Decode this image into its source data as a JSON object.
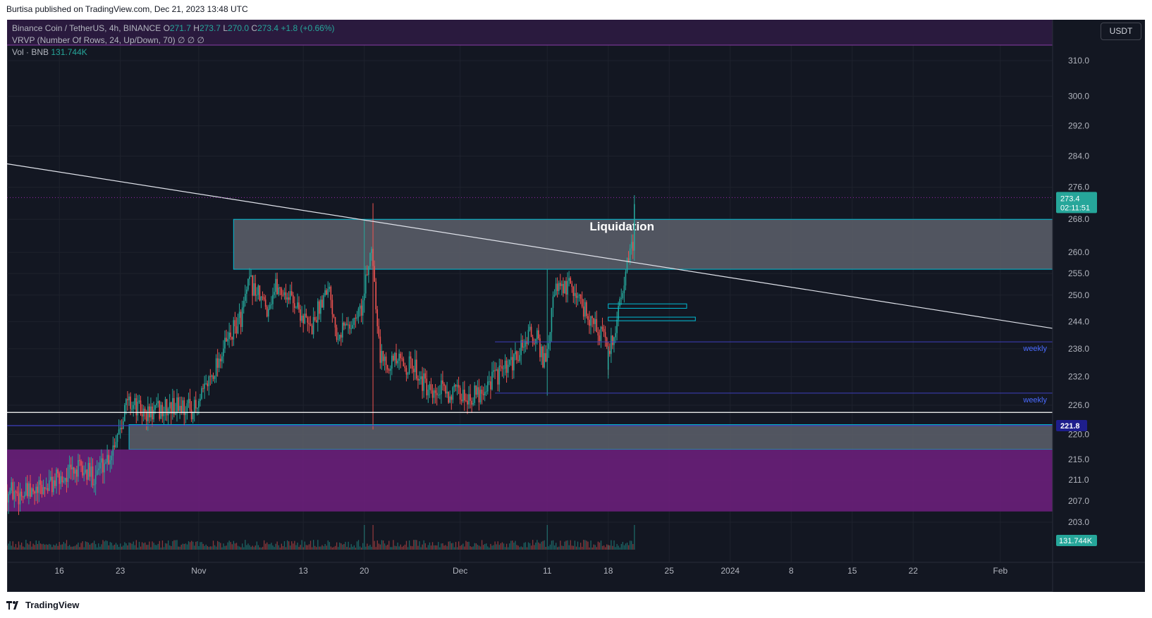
{
  "publisher_line": "Burtisa published on TradingView.com, Dec 21, 2023 13:48 UTC",
  "footer_brand": "TradingView",
  "currency_button": "USDT",
  "legend": {
    "symbol": "Binance Coin / TetherUS, 4h, BINANCE",
    "o_label": "O",
    "o_value": "271.7",
    "h_label": "H",
    "h_value": "273.7",
    "l_label": "L",
    "l_value": "270.0",
    "c_label": "C",
    "c_value": "273.4",
    "change": "+1.8 (+0.66%)",
    "vrvp": "VRVP (Number Of Rows, 24, Up/Down, 70)  ∅  ∅  ∅",
    "vol_label": "Vol · BNB",
    "vol_value": "131.744K"
  },
  "colors": {
    "background": "#131722",
    "up": "#26a69a",
    "down": "#ef5350",
    "zone_fill": "#5d606b",
    "zone_border": "#00bcd4",
    "purple_zone": "#6a1f7a",
    "weekly_line": "#3f3fbf"
  },
  "chart_data": {
    "type": "candlestick",
    "symbol": "BNBUSDT",
    "timeframe": "4h",
    "price_axis": {
      "scale": "log",
      "ticks": [
        "310.0",
        "300.0",
        "292.0",
        "284.0",
        "276.0",
        "268.0",
        "260.0",
        "255.0",
        "250.0",
        "244.0",
        "238.0",
        "232.0",
        "226.0",
        "220.0",
        "215.0",
        "211.0",
        "207.0",
        "203.0"
      ],
      "range": [
        200,
        320
      ]
    },
    "time_axis": {
      "ticks": [
        "16",
        "23",
        "Nov",
        "13",
        "20",
        "Dec",
        "11",
        "18",
        "25",
        "2024",
        "8",
        "15",
        "22",
        "Feb"
      ],
      "start": "2023-10-10",
      "end": "2024-02-07"
    },
    "price_badges": [
      {
        "label": "273.4",
        "sub": "02:11:51"
      },
      {
        "label": "221.8"
      },
      {
        "label": "131.744K"
      }
    ],
    "ohlc_anchor_path": [
      [
        "2023-10-10",
        209
      ],
      [
        "2023-10-13",
        208
      ],
      [
        "2023-10-16",
        211
      ],
      [
        "2023-10-18",
        213
      ],
      [
        "2023-10-20",
        212
      ],
      [
        "2023-10-22",
        216
      ],
      [
        "2023-10-24",
        227
      ],
      [
        "2023-10-26",
        224
      ],
      [
        "2023-10-28",
        225
      ],
      [
        "2023-10-30",
        226
      ],
      [
        "2023-11-01",
        225
      ],
      [
        "2023-11-02",
        230
      ],
      [
        "2023-11-04",
        238
      ],
      [
        "2023-11-06",
        245
      ],
      [
        "2023-11-07",
        253
      ],
      [
        "2023-11-09",
        247
      ],
      [
        "2023-11-10",
        252
      ],
      [
        "2023-11-12",
        249
      ],
      [
        "2023-11-14",
        242
      ],
      [
        "2023-11-16",
        253
      ],
      [
        "2023-11-17",
        242
      ],
      [
        "2023-11-19",
        244
      ],
      [
        "2023-11-20",
        248
      ],
      [
        "2023-11-21",
        262
      ],
      [
        "2023-11-22",
        236
      ],
      [
        "2023-11-24",
        235
      ],
      [
        "2023-11-26",
        234
      ],
      [
        "2023-11-28",
        227
      ],
      [
        "2023-11-29",
        229
      ],
      [
        "2023-12-01",
        228
      ],
      [
        "2023-12-03",
        228
      ],
      [
        "2023-12-05",
        232
      ],
      [
        "2023-12-07",
        234
      ],
      [
        "2023-12-09",
        241
      ],
      [
        "2023-12-10",
        240
      ],
      [
        "2023-12-11",
        234
      ],
      [
        "2023-12-12",
        251
      ],
      [
        "2023-12-14",
        252
      ],
      [
        "2023-12-16",
        245
      ],
      [
        "2023-12-18",
        239
      ],
      [
        "2023-12-18",
        235
      ],
      [
        "2023-12-19",
        243
      ],
      [
        "2023-12-20",
        254
      ],
      [
        "2023-12-21",
        262
      ],
      [
        "2023-12-21",
        273.4
      ]
    ],
    "annotations": [
      {
        "type": "zone",
        "label": "Liquidation",
        "start": "2023-11-05",
        "end": "2024-02-07",
        "top": 268,
        "bottom": 256
      },
      {
        "type": "zone",
        "label": "",
        "start": "2023-10-24",
        "end": "2024-02-07",
        "top": 222,
        "bottom": 217
      },
      {
        "type": "zone",
        "label": "",
        "start": "2023-10-10",
        "end": "2024-02-07",
        "top": 217,
        "bottom": 205,
        "style": "purple"
      },
      {
        "type": "box",
        "start": "2023-12-18",
        "end": "2023-12-27",
        "top": 248,
        "bottom": 247
      },
      {
        "type": "box",
        "start": "2023-12-18",
        "end": "2023-12-28",
        "top": 245,
        "bottom": 244.2
      },
      {
        "type": "hline",
        "label": "weekly",
        "start": "2023-12-05",
        "value": 239.5
      },
      {
        "type": "hline",
        "label": "weekly",
        "start": "2023-12-05",
        "value": 228.5
      },
      {
        "type": "hline",
        "label": "",
        "start": "2023-10-10",
        "value": 224.5
      },
      {
        "type": "hline",
        "label": "",
        "start": "2023-10-10",
        "value": 221.8
      },
      {
        "type": "trendline",
        "start": [
          "2023-10-10",
          282
        ],
        "end": [
          "2024-02-07",
          242.5
        ]
      }
    ]
  }
}
